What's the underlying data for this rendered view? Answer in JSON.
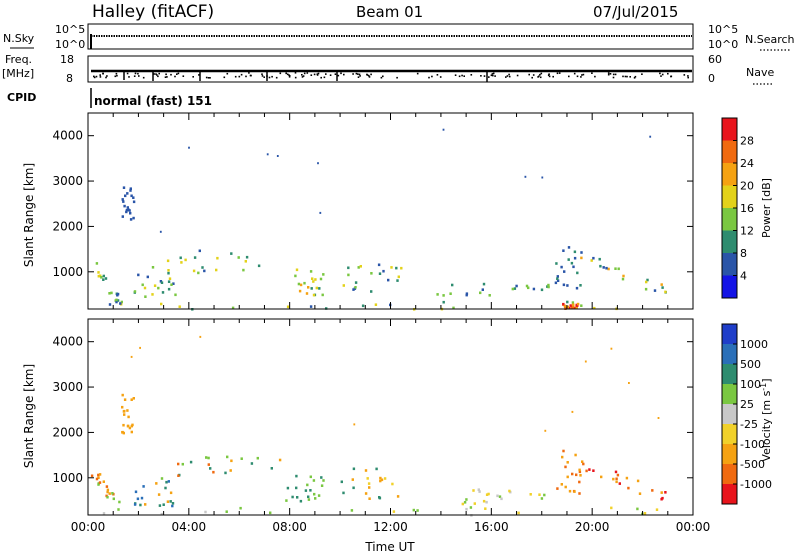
{
  "header": {
    "station": "Halley (fitACF)",
    "beam": "Beam 01",
    "date": "07/Jul/2015"
  },
  "strips": {
    "nsky_label": "N.Sky",
    "nsky_ticks": [
      "10^5",
      "10^0"
    ],
    "nsearch_label": "N.Search",
    "nsearch_ticks": [
      "10^5",
      "10^0"
    ],
    "freq_label": "Freq.",
    "freq_unit": "[MHz]",
    "freq_ticks": [
      "18",
      "8"
    ],
    "nave_label": "Nave",
    "nave_ticks": [
      "60",
      "0"
    ],
    "cpid_label": "CPID",
    "cpid_value": "normal (fast) 151"
  },
  "chart_data": [
    {
      "type": "heatmap",
      "name": "power",
      "ylabel": "Slant Range [km]",
      "yticks": [
        1000,
        2000,
        3000,
        4000
      ],
      "ylim": [
        180,
        4500
      ],
      "xlim": [
        0,
        24
      ],
      "colorbar_label": "Power [dB]",
      "colorbar_ticks": [
        "28",
        "24",
        "20",
        "16",
        "12",
        "8",
        "4"
      ],
      "colorbar_colors": [
        "#e8141c",
        "#f06a10",
        "#f5a212",
        "#e3d21a",
        "#7ac741",
        "#2e8c6f",
        "#2a55a8",
        "#1414e6"
      ],
      "regions": [
        {
          "t0": 0.1,
          "t1": 1.3,
          "r0": 300,
          "r1": 1250,
          "shape": "diag",
          "colors": [
            "#2a55a8",
            "#2e8c6f",
            "#7ac741",
            "#e3d21a"
          ]
        },
        {
          "t0": 1.8,
          "t1": 3.5,
          "r0": 400,
          "r1": 1000,
          "colors": [
            "#2a55a8",
            "#2e8c6f",
            "#7ac741",
            "#e3d21a"
          ]
        },
        {
          "t0": 2.5,
          "t1": 7.8,
          "r0": 1000,
          "r1": 1500,
          "colors": [
            "#2a55a8",
            "#2e8c6f",
            "#7ac741",
            "#e3d21a"
          ]
        },
        {
          "t0": 7.8,
          "t1": 9.3,
          "r0": 500,
          "r1": 1100,
          "colors": [
            "#2e8c6f",
            "#7ac741",
            "#e3d21a",
            "#f5a212"
          ]
        },
        {
          "t0": 10.0,
          "t1": 12.4,
          "r0": 550,
          "r1": 1250,
          "colors": [
            "#2a55a8",
            "#2e8c6f",
            "#7ac741",
            "#e3d21a"
          ]
        },
        {
          "t0": 13.8,
          "t1": 18.3,
          "r0": 500,
          "r1": 800,
          "colors": [
            "#2a55a8",
            "#2e8c6f",
            "#7ac741"
          ]
        },
        {
          "t0": 18.5,
          "t1": 19.6,
          "r0": 650,
          "r1": 1650,
          "colors": [
            "#2a55a8",
            "#2e8c6f"
          ]
        },
        {
          "t0": 19.5,
          "t1": 23.0,
          "r0": 550,
          "r1": 1350,
          "shape": "diag",
          "colors": [
            "#2a55a8",
            "#2e8c6f",
            "#7ac741",
            "#e3d21a",
            "#f5a212"
          ]
        },
        {
          "t0": 0.4,
          "t1": 23.8,
          "r0": 200,
          "r1": 380,
          "colors": [
            "#2a55a8",
            "#2e8c6f",
            "#7ac741",
            "#e3d21a"
          ]
        },
        {
          "t0": 18.8,
          "t1": 19.4,
          "r0": 190,
          "r1": 320,
          "colors": [
            "#e8141c",
            "#f06a10",
            "#f5a212"
          ]
        },
        {
          "t0": 1.3,
          "t1": 1.8,
          "r0": 2000,
          "r1": 2900,
          "colors": [
            "#2a55a8"
          ]
        }
      ]
    },
    {
      "type": "heatmap",
      "name": "velocity",
      "xlabel": "Time UT",
      "ylabel": "Slant Range [km]",
      "xticks": [
        "00:00",
        "04:00",
        "08:00",
        "12:00",
        "16:00",
        "20:00",
        "00:00"
      ],
      "yticks": [
        1000,
        2000,
        3000,
        4000
      ],
      "ylim": [
        180,
        4500
      ],
      "xlim": [
        0,
        24
      ],
      "colorbar_label": "Velocity [m s^-1]",
      "colorbar_ticks": [
        "1000",
        "500",
        "100",
        "25",
        "-25",
        "-100",
        "-500",
        "-1000"
      ],
      "colorbar_colors": [
        "#1f3ec9",
        "#2a6fb8",
        "#2e8c6f",
        "#7ac741",
        "#c8c8c8",
        "#f1d12a",
        "#f5a212",
        "#f06a10",
        "#e8141c"
      ],
      "regions": [
        {
          "t0": 0.1,
          "t1": 1.3,
          "r0": 300,
          "r1": 1250,
          "shape": "diag",
          "colors": [
            "#f5a212",
            "#f06a10",
            "#7ac741"
          ]
        },
        {
          "t0": 1.8,
          "t1": 3.5,
          "r0": 400,
          "r1": 1000,
          "colors": [
            "#2a6fb8",
            "#2e8c6f",
            "#f5a212"
          ]
        },
        {
          "t0": 2.5,
          "t1": 7.8,
          "r0": 1000,
          "r1": 1500,
          "colors": [
            "#2e8c6f",
            "#7ac741",
            "#f5a212",
            "#f06a10"
          ]
        },
        {
          "t0": 7.8,
          "t1": 9.3,
          "r0": 500,
          "r1": 1100,
          "colors": [
            "#2e8c6f",
            "#7ac741"
          ]
        },
        {
          "t0": 10.0,
          "t1": 12.4,
          "r0": 550,
          "r1": 1250,
          "colors": [
            "#f1d12a",
            "#f5a212",
            "#2e8c6f"
          ]
        },
        {
          "t0": 13.8,
          "t1": 18.3,
          "r0": 450,
          "r1": 800,
          "colors": [
            "#7ac741",
            "#c8c8c8",
            "#f1d12a"
          ]
        },
        {
          "t0": 18.5,
          "t1": 19.6,
          "r0": 650,
          "r1": 1650,
          "colors": [
            "#f5a212",
            "#f06a10"
          ]
        },
        {
          "t0": 19.5,
          "t1": 23.0,
          "r0": 550,
          "r1": 1350,
          "shape": "diag",
          "colors": [
            "#f06a10",
            "#f5a212",
            "#e8141c"
          ]
        },
        {
          "t0": 0.4,
          "t1": 23.8,
          "r0": 200,
          "r1": 380,
          "colors": [
            "#7ac741",
            "#c8c8c8",
            "#f1d12a"
          ]
        },
        {
          "t0": 1.3,
          "t1": 1.8,
          "r0": 2000,
          "r1": 2900,
          "colors": [
            "#f5a212"
          ]
        }
      ]
    }
  ]
}
